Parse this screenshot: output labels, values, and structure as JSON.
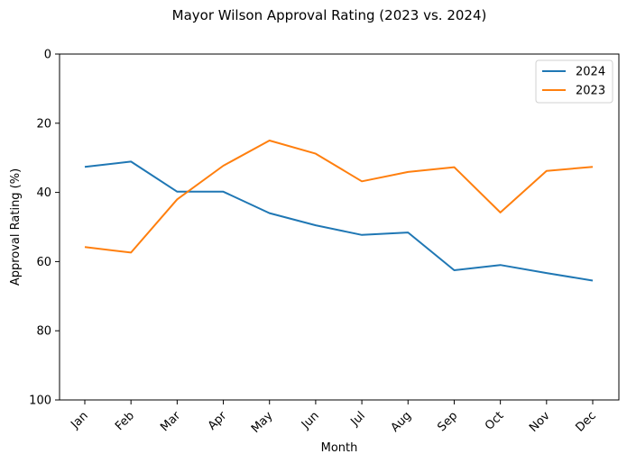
{
  "chart_data": {
    "type": "line",
    "title": "Mayor Wilson Approval Rating (2023 vs. 2024)",
    "xlabel": "Month",
    "ylabel": "Approval Rating (%)",
    "categories": [
      "Jan",
      "Feb",
      "Mar",
      "Apr",
      "May",
      "Jun",
      "Jul",
      "Aug",
      "Sep",
      "Oct",
      "Nov",
      "Dec"
    ],
    "ylim": [
      0,
      100
    ],
    "y_inverted": true,
    "yticks": [
      0,
      20,
      40,
      60,
      80,
      100
    ],
    "grid": false,
    "legend_position": "top-right",
    "series": [
      {
        "name": "2024",
        "color": "#1f77b4",
        "values": [
          32.6,
          31.1,
          39.8,
          39.8,
          46.0,
          49.5,
          52.3,
          51.6,
          62.5,
          61.0,
          63.3,
          65.5
        ]
      },
      {
        "name": "2023",
        "color": "#ff7f0e",
        "values": [
          55.8,
          57.4,
          42.0,
          32.3,
          25.0,
          28.8,
          36.8,
          34.1,
          32.7,
          45.8,
          33.8,
          32.6
        ]
      }
    ]
  }
}
